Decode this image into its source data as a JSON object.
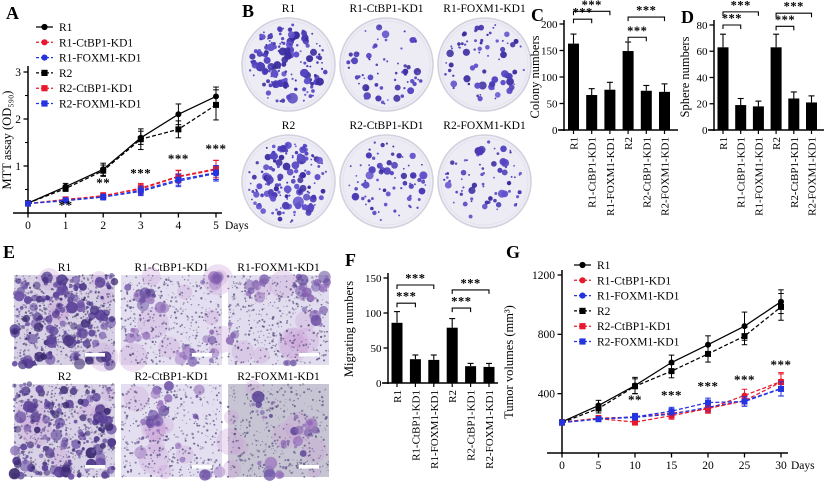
{
  "panels": {
    "a": {
      "letter": "A"
    },
    "b": {
      "letter": "B",
      "labels": [
        "R1",
        "R1-CtBP1-KD1",
        "R1-FOXM1-KD1",
        "R2",
        "R2-CtBP1-KD1",
        "R2-FOXM1-KD1"
      ]
    },
    "c": {
      "letter": "C"
    },
    "d": {
      "letter": "D"
    },
    "e": {
      "letter": "E",
      "labels": [
        "R1",
        "R1-CtBP1-KD1",
        "R1-FOXM1-KD1",
        "R2",
        "R2-CtBP1-KD1",
        "R2-FOXM1-KD1"
      ]
    },
    "f": {
      "letter": "F"
    },
    "g": {
      "letter": "G"
    }
  },
  "colors": {
    "black": "#000000",
    "red": "#e8192c",
    "blue": "#2434e0",
    "colony": "#4a3ab5",
    "stain_bg": "#ddd6ea"
  },
  "chart_data": [
    {
      "id": "A",
      "type": "line",
      "title": "",
      "ylabel": "MTT assay (OD₅₉₀)",
      "xlabel": "Days",
      "x": [
        0,
        1,
        2,
        3,
        4,
        5
      ],
      "xticks": [
        0,
        1,
        2,
        3,
        4,
        5
      ],
      "yticks": [
        1,
        2,
        3
      ],
      "ylim": [
        0,
        3.1
      ],
      "grid": false,
      "legend_position": "top-left",
      "series": [
        {
          "name": "R1",
          "color": "#000000",
          "marker": "circle",
          "dashed": false,
          "values": [
            0.21,
            0.56,
            0.93,
            1.6,
            2.1,
            2.48
          ],
          "err": [
            0.02,
            0.07,
            0.13,
            0.14,
            0.22,
            0.2
          ]
        },
        {
          "name": "R1-CtBP1-KD1",
          "color": "#e8192c",
          "marker": "circle",
          "dashed": true,
          "values": [
            0.2,
            0.28,
            0.37,
            0.51,
            0.77,
            0.92
          ],
          "err": [
            0.02,
            0.05,
            0.06,
            0.1,
            0.13,
            0.2
          ]
        },
        {
          "name": "R1-FOXM1-KD1",
          "color": "#2434e0",
          "marker": "circle",
          "dashed": true,
          "values": [
            0.2,
            0.26,
            0.34,
            0.46,
            0.68,
            0.84
          ],
          "err": [
            0.02,
            0.04,
            0.06,
            0.09,
            0.12,
            0.16
          ]
        },
        {
          "name": "R2",
          "color": "#000000",
          "marker": "square",
          "dashed": true,
          "values": [
            0.21,
            0.52,
            0.9,
            1.57,
            1.78,
            2.3
          ],
          "err": [
            0.02,
            0.06,
            0.12,
            0.22,
            0.18,
            0.32
          ]
        },
        {
          "name": "R2-CtBP1-KD1",
          "color": "#e8192c",
          "marker": "square",
          "dashed": true,
          "values": [
            0.2,
            0.29,
            0.36,
            0.53,
            0.78,
            0.94
          ],
          "err": [
            0.02,
            0.05,
            0.07,
            0.1,
            0.13,
            0.18
          ]
        },
        {
          "name": "R2-FOXM1-KD1",
          "color": "#2434e0",
          "marker": "square",
          "dashed": true,
          "values": [
            0.2,
            0.27,
            0.34,
            0.48,
            0.71,
            0.86
          ],
          "err": [
            0.02,
            0.04,
            0.06,
            0.09,
            0.12,
            0.15
          ]
        }
      ],
      "significance": [
        {
          "x": 1,
          "y": 0.07,
          "label": "**"
        },
        {
          "x": 2,
          "y": 0.55,
          "label": "**"
        },
        {
          "x": 3,
          "y": 0.76,
          "label": "***"
        },
        {
          "x": 4,
          "y": 1.06,
          "label": "***"
        },
        {
          "x": 5,
          "y": 1.28,
          "label": "***"
        }
      ]
    },
    {
      "id": "C",
      "type": "bar",
      "title": "",
      "ylabel": "Colony numbers",
      "categories": [
        "R1",
        "R1-CtBP1-KD1",
        "R1-FOXM1-KD1",
        "R2",
        "R2-CtBP1-KD1",
        "R2-FOXM1-KD1"
      ],
      "values": [
        163,
        66,
        76,
        149,
        74,
        72
      ],
      "err": [
        18,
        12,
        14,
        17,
        10,
        15
      ],
      "yticks": [
        0,
        50,
        100,
        150,
        200
      ],
      "ylim": [
        0,
        200
      ],
      "bar_color": "#000000",
      "brackets": [
        {
          "from": 0,
          "to": 1,
          "label": "***",
          "y": 209
        },
        {
          "from": 0,
          "to": 2,
          "label": "***",
          "y": 224
        },
        {
          "from": 3,
          "to": 4,
          "label": "***",
          "y": 175
        },
        {
          "from": 3,
          "to": 5,
          "label": "***",
          "y": 213
        }
      ]
    },
    {
      "id": "D",
      "type": "bar",
      "title": "",
      "ylabel": "Sphere numbers",
      "categories": [
        "R1",
        "R1-CtBP1-KD1",
        "R1-FOXM1-KD1",
        "R2",
        "R2-CtBP1-KD1",
        "R2-FOXM1-KD1"
      ],
      "values": [
        63,
        19,
        18,
        63,
        24,
        21
      ],
      "err": [
        10,
        5,
        4,
        10,
        5,
        5
      ],
      "yticks": [
        0,
        20,
        40,
        60,
        80
      ],
      "ylim": [
        0,
        80
      ],
      "bar_color": "#000000",
      "brackets": [
        {
          "from": 0,
          "to": 1,
          "label": "***",
          "y": 80
        },
        {
          "from": 0,
          "to": 2,
          "label": "***",
          "y": 90
        },
        {
          "from": 3,
          "to": 4,
          "label": "***",
          "y": 79
        },
        {
          "from": 3,
          "to": 5,
          "label": "***",
          "y": 89
        }
      ]
    },
    {
      "id": "F",
      "type": "bar",
      "title": "",
      "ylabel": "Migrating numbers",
      "categories": [
        "R1",
        "R1-CtBP1-KD1",
        "R1-FOXM1-KD1",
        "R2",
        "R2-CtBP1-KD1",
        "R2-FOXM1-KD1"
      ],
      "values": [
        86,
        34,
        33,
        79,
        24,
        23
      ],
      "err": [
        16,
        6,
        7,
        13,
        4,
        5
      ],
      "yticks": [
        0,
        50,
        100,
        150
      ],
      "ylim": [
        0,
        150
      ],
      "bar_color": "#000000",
      "brackets": [
        {
          "from": 0,
          "to": 1,
          "label": "***",
          "y": 114
        },
        {
          "from": 0,
          "to": 2,
          "label": "***",
          "y": 140
        },
        {
          "from": 3,
          "to": 4,
          "label": "***",
          "y": 107
        },
        {
          "from": 3,
          "to": 5,
          "label": "***",
          "y": 133
        }
      ]
    },
    {
      "id": "G",
      "type": "line",
      "title": "",
      "ylabel": "Tumor volumes (mm³)",
      "xlabel": "Days",
      "x": [
        0,
        5,
        10,
        15,
        20,
        25,
        30
      ],
      "xticks": [
        0,
        5,
        10,
        15,
        20,
        25,
        30
      ],
      "yticks": [
        400,
        800,
        1200
      ],
      "ylim": [
        0,
        1230
      ],
      "grid": false,
      "legend_position": "top-left",
      "series": [
        {
          "name": "R1",
          "color": "#000000",
          "marker": "circle",
          "dashed": false,
          "values": [
            210,
            320,
            455,
            610,
            730,
            855,
            1020
          ],
          "err": [
            15,
            35,
            55,
            50,
            60,
            95,
            80
          ]
        },
        {
          "name": "R1-CtBP1-KD1",
          "color": "#e8192c",
          "marker": "circle",
          "dashed": true,
          "values": [
            208,
            235,
            242,
            268,
            298,
            388,
            482
          ],
          "err": [
            10,
            18,
            25,
            25,
            30,
            42,
            60
          ]
        },
        {
          "name": "R1-FOXM1-KD1",
          "color": "#2434e0",
          "marker": "circle",
          "dashed": true,
          "values": [
            208,
            230,
            240,
            262,
            308,
            352,
            435
          ],
          "err": [
            10,
            16,
            22,
            24,
            30,
            35,
            50
          ]
        },
        {
          "name": "R2",
          "color": "#000000",
          "marker": "square",
          "dashed": true,
          "values": [
            205,
            300,
            450,
            552,
            668,
            788,
            985
          ],
          "err": [
            15,
            30,
            50,
            45,
            55,
            58,
            90
          ]
        },
        {
          "name": "R2-CtBP1-KD1",
          "color": "#e8192c",
          "marker": "square",
          "dashed": true,
          "values": [
            205,
            232,
            208,
            252,
            300,
            352,
            478
          ],
          "err": [
            10,
            18,
            20,
            24,
            28,
            35,
            55
          ]
        },
        {
          "name": "R2-FOXM1-KD1",
          "color": "#2434e0",
          "marker": "square",
          "dashed": true,
          "values": [
            205,
            228,
            244,
            282,
            340,
            347,
            432
          ],
          "err": [
            10,
            16,
            22,
            26,
            30,
            32,
            48
          ]
        }
      ],
      "significance": [
        {
          "x": 10,
          "y": 330,
          "label": "**"
        },
        {
          "x": 15,
          "y": 360,
          "label": "***"
        },
        {
          "x": 20,
          "y": 420,
          "label": "***"
        },
        {
          "x": 25,
          "y": 465,
          "label": "***"
        },
        {
          "x": 30,
          "y": 565,
          "label": "***"
        }
      ]
    }
  ]
}
